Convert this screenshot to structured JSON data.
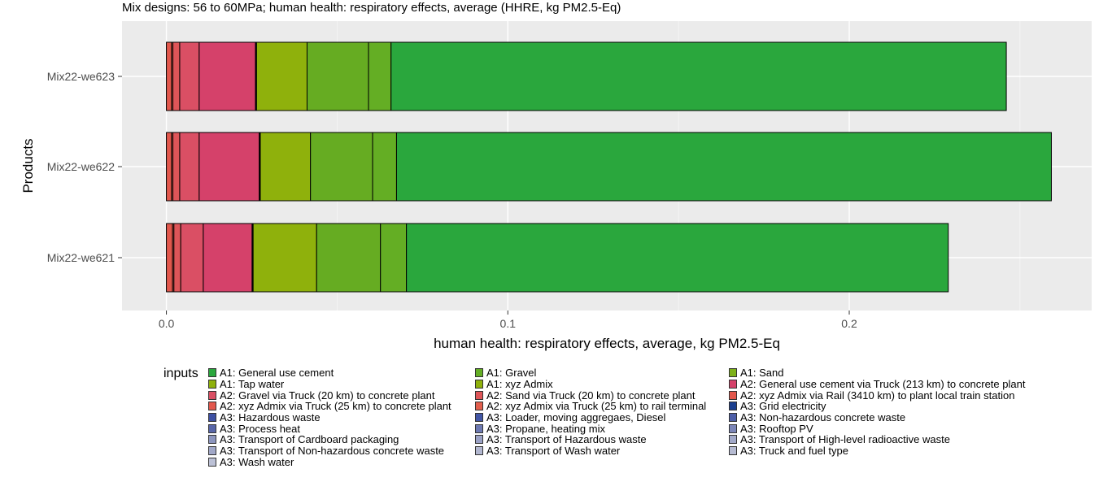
{
  "chart_data": {
    "type": "bar",
    "orientation": "horizontal",
    "stacked": true,
    "title": "Mix designs: 56 to 60MPa; human health: respiratory effects, average (HHRE, kg PM2.5-Eq)",
    "xlabel": "human health: respiratory effects, average, kg PM2.5-Eq",
    "ylabel": "Products",
    "xlim": [
      -0.013,
      0.271
    ],
    "xticks": [
      0.0,
      0.1,
      0.2
    ],
    "xtick_labels": [
      "0.0",
      "0.1",
      "0.2"
    ],
    "categories": [
      "Mix22-we623",
      "Mix22-we622",
      "Mix22-we621"
    ],
    "grid": true,
    "legend_title": "inputs",
    "legend_position": "bottom",
    "series": [
      {
        "name": "A2: xyz Admix via Rail (3410 km) to plant local train station",
        "color": "#E2574C",
        "values": [
          0.0015,
          0.0015,
          0.0018
        ]
      },
      {
        "name": "A2: xyz Admix via Truck (25 km) to rail terminal",
        "color": "#E25E4D",
        "values": [
          0.0004,
          0.0004,
          0.0004
        ]
      },
      {
        "name": "A2: Sand via Truck (20 km) to concrete plant",
        "color": "#DE5558",
        "values": [
          0.002,
          0.002,
          0.002
        ]
      },
      {
        "name": "A2: Gravel via Truck (20 km) to concrete plant",
        "color": "#DA4F64",
        "values": [
          0.0057,
          0.0057,
          0.0066
        ]
      },
      {
        "name": "A2: General use cement via Truck (213 km) to concrete plant",
        "color": "#D5416A",
        "values": [
          0.0165,
          0.0176,
          0.0143
        ]
      },
      {
        "name": "A1: xyz Admix",
        "color": "#000000",
        "values": [
          0.0003,
          0.0003,
          0.0003
        ]
      },
      {
        "name": "A1: Tap water",
        "color": "#8FB10C",
        "values": [
          0.0148,
          0.0147,
          0.0186
        ]
      },
      {
        "name": "A1: Sand",
        "color": "#66AC22",
        "values": [
          0.018,
          0.0182,
          0.0187
        ]
      },
      {
        "name": "A1: Gravel",
        "color": "#64AE24",
        "values": [
          0.0066,
          0.007,
          0.0076
        ]
      },
      {
        "name": "A1: General use cement",
        "color": "#2AA73D",
        "values": [
          0.1802,
          0.1918,
          0.1587
        ]
      }
    ]
  },
  "legend": {
    "col1": [
      {
        "label": "A1: General use cement",
        "color": "#2AA73D"
      },
      {
        "label": "A1: Tap water",
        "color": "#8FB10C"
      },
      {
        "label": "A2: Gravel via Truck (20 km) to concrete plant",
        "color": "#DA4F64"
      },
      {
        "label": "A2: xyz Admix via Truck (25 km) to concrete plant",
        "color": "#E2574C"
      },
      {
        "label": "A3: Hazardous waste",
        "color": "#3D50A3"
      },
      {
        "label": "A3: Process heat",
        "color": "#5866A8"
      },
      {
        "label": "A3: Transport of Cardboard packaging",
        "color": "#8C95BE"
      },
      {
        "label": "A3: Transport of Non-hazardous concrete waste",
        "color": "#A1A8C8"
      },
      {
        "label": "A3: Wash water",
        "color": "#BCC1D6"
      }
    ],
    "col2": [
      {
        "label": "A1: Gravel",
        "color": "#64AE24"
      },
      {
        "label": "A1: xyz Admix",
        "color": "#8FB10C"
      },
      {
        "label": "A2: Sand via Truck (20 km) to concrete plant",
        "color": "#DE5558"
      },
      {
        "label": "A2: xyz Admix via Truck (25 km) to rail terminal",
        "color": "#E25E4D"
      },
      {
        "label": "A3: Loader, moving aggregaes, Diesel",
        "color": "#4256A6"
      },
      {
        "label": "A3: Propane, heating mix",
        "color": "#6D79B2"
      },
      {
        "label": "A3: Transport of Hazardous waste",
        "color": "#9AA1C5"
      },
      {
        "label": "A3: Transport of Wash water",
        "color": "#B2B7D0"
      }
    ],
    "col3": [
      {
        "label": "A1: Sand",
        "color": "#7DB119"
      },
      {
        "label": "A2: General use cement via Truck (213 km) to concrete plant",
        "color": "#D5416A"
      },
      {
        "label": "A2: xyz Admix via Rail (3410 km) to plant local train station",
        "color": "#E2574C"
      },
      {
        "label": "A3: Grid electricity",
        "color": "#1B3F8F"
      },
      {
        "label": "A3: Non-hazardous concrete waste",
        "color": "#4E5FA8"
      },
      {
        "label": "A3: Rooftop PV",
        "color": "#7C86B8"
      },
      {
        "label": "A3: Transport of High-level radioactive waste",
        "color": "#A2A9C9"
      },
      {
        "label": "A3: Truck and fuel type",
        "color": "#B6BBD2"
      }
    ]
  }
}
